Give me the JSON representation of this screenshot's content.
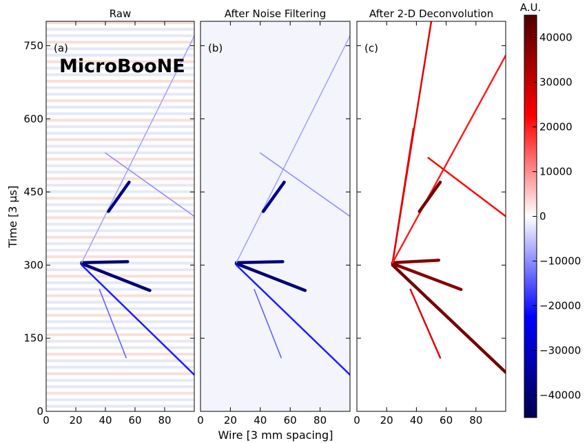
{
  "figure": {
    "experiment_label": "MicroBooNE",
    "xlabel": "Wire [3 mm spacing]",
    "ylabel": "Time [3 μs]"
  },
  "chart_data": [
    {
      "type": "heatmap",
      "panel": "(a)",
      "title": "Raw",
      "xlim": [
        0,
        100
      ],
      "ylim": [
        0,
        800
      ],
      "x_ticks": [
        0,
        20,
        40,
        60,
        80
      ],
      "y_ticks": [
        0,
        150,
        300,
        450,
        600,
        750
      ],
      "tracks": [
        {
          "x": [
            24,
            55
          ],
          "y": [
            305,
            307
          ],
          "value": -40000
        },
        {
          "x": [
            24,
            70
          ],
          "y": [
            303,
            248
          ],
          "value": -40000
        },
        {
          "x": [
            24,
            100
          ],
          "y": [
            300,
            75
          ],
          "value": -20000
        },
        {
          "x": [
            24,
            100
          ],
          "y": [
            305,
            770
          ],
          "value": -8000
        },
        {
          "x": [
            40,
            100
          ],
          "y": [
            530,
            400
          ],
          "value": -10000
        },
        {
          "x": [
            42,
            56
          ],
          "y": [
            410,
            470
          ],
          "value": -38000
        },
        {
          "x": [
            36,
            54
          ],
          "y": [
            250,
            110
          ],
          "value": -14000
        }
      ]
    },
    {
      "type": "heatmap",
      "panel": "(b)",
      "title": "After Noise Filtering",
      "xlim": [
        0,
        100
      ],
      "ylim": [
        0,
        800
      ],
      "x_ticks": [
        0,
        20,
        40,
        60,
        80
      ],
      "y_ticks": [
        0,
        150,
        300,
        450,
        600,
        750
      ],
      "tracks": [
        {
          "x": [
            24,
            55
          ],
          "y": [
            305,
            307
          ],
          "value": -40000
        },
        {
          "x": [
            24,
            70
          ],
          "y": [
            303,
            248
          ],
          "value": -40000
        },
        {
          "x": [
            24,
            100
          ],
          "y": [
            300,
            75
          ],
          "value": -20000
        },
        {
          "x": [
            24,
            100
          ],
          "y": [
            305,
            770
          ],
          "value": -8000
        },
        {
          "x": [
            40,
            100
          ],
          "y": [
            530,
            400
          ],
          "value": -10000
        },
        {
          "x": [
            42,
            56
          ],
          "y": [
            410,
            470
          ],
          "value": -38000
        },
        {
          "x": [
            36,
            54
          ],
          "y": [
            250,
            110
          ],
          "value": -14000
        }
      ]
    },
    {
      "type": "heatmap",
      "panel": "(c)",
      "title": "After 2-D Deconvolution",
      "xlim": [
        0,
        100
      ],
      "ylim": [
        0,
        800
      ],
      "x_ticks": [
        0,
        20,
        40,
        60,
        80
      ],
      "y_ticks": [
        0,
        150,
        300,
        450,
        600,
        750
      ],
      "tracks": [
        {
          "x": [
            24,
            55
          ],
          "y": [
            305,
            310
          ],
          "value": 38000
        },
        {
          "x": [
            24,
            70
          ],
          "y": [
            303,
            250
          ],
          "value": 38000
        },
        {
          "x": [
            24,
            100
          ],
          "y": [
            300,
            80
          ],
          "value": 40000
        },
        {
          "x": [
            24,
            50
          ],
          "y": [
            305,
            800
          ],
          "value": 26000
        },
        {
          "x": [
            24,
            38
          ],
          "y": [
            305,
            580
          ],
          "value": 26000
        },
        {
          "x": [
            24,
            100
          ],
          "y": [
            305,
            730
          ],
          "value": 20000
        },
        {
          "x": [
            48,
            100
          ],
          "y": [
            520,
            400
          ],
          "value": 22000
        },
        {
          "x": [
            42,
            56
          ],
          "y": [
            410,
            470
          ],
          "value": 40000
        },
        {
          "x": [
            36,
            56
          ],
          "y": [
            250,
            110
          ],
          "value": 26000
        }
      ]
    }
  ],
  "colorbar": {
    "title": "A.U.",
    "min": -45000,
    "max": 45000,
    "ticks": [
      40000,
      30000,
      20000,
      10000,
      0,
      -10000,
      -20000,
      -30000,
      -40000
    ],
    "tick_labels": [
      "40000",
      "30000",
      "20000",
      "10000",
      "0",
      "−10000",
      "−20000",
      "−30000",
      "−40000"
    ],
    "colors": [
      "#00004d",
      "#0000ff",
      "#ffffff",
      "#ff0000",
      "#4d0000"
    ]
  }
}
